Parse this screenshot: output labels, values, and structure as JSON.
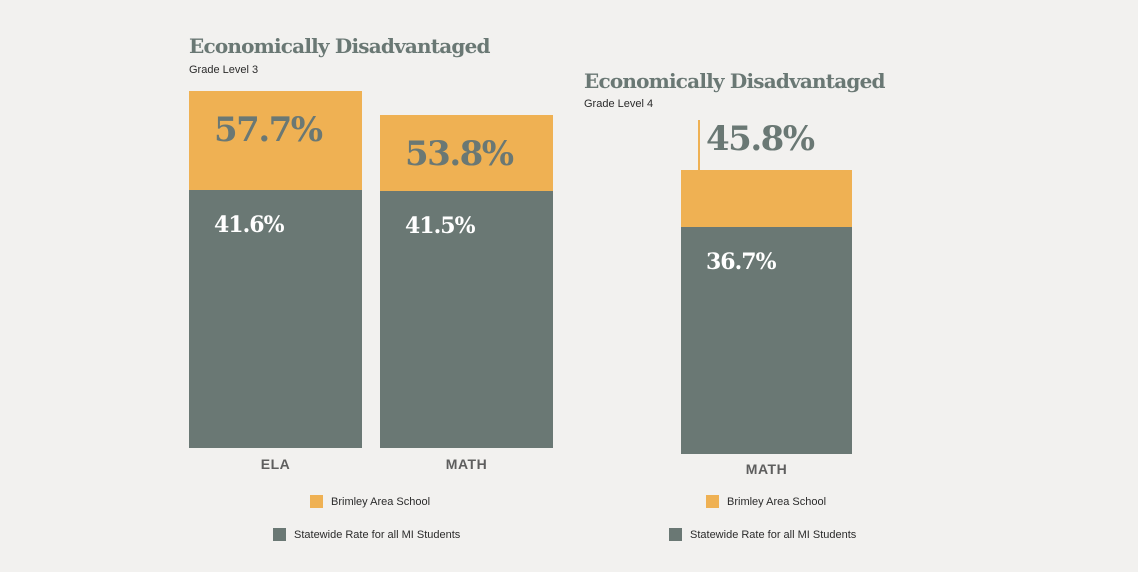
{
  "colors": {
    "school": "#efb153",
    "statewide": "#6a7874",
    "title": "#6a7874",
    "value_on_school": "#6a7874",
    "value_on_state": "#ffffff"
  },
  "chart_data": [
    {
      "type": "bar",
      "title": "Economically Disadvantaged",
      "subtitle": "Grade Level 3",
      "categories": [
        "ELA",
        "MATH"
      ],
      "series": [
        {
          "name": "Brimley Area School",
          "values": [
            57.7,
            53.8
          ],
          "labels": [
            "57.7%",
            "53.8%"
          ]
        },
        {
          "name": "Statewide Rate for all MI Students",
          "values": [
            41.6,
            41.5
          ],
          "labels": [
            "41.6%",
            "41.5%"
          ]
        }
      ],
      "ylim": [
        0,
        60
      ],
      "legend": [
        "Brimley Area School",
        "Statewide Rate for all MI Students"
      ]
    },
    {
      "type": "bar",
      "title": "Economically Disadvantaged",
      "subtitle": "Grade Level 4",
      "categories": [
        "MATH"
      ],
      "series": [
        {
          "name": "Brimley Area School",
          "values": [
            45.8
          ],
          "labels": [
            "45.8%"
          ]
        },
        {
          "name": "Statewide Rate for all MI Students",
          "values": [
            36.7
          ],
          "labels": [
            "36.7%"
          ]
        }
      ],
      "ylim": [
        0,
        60
      ],
      "legend": [
        "Brimley Area School",
        "Statewide Rate for all MI Students"
      ]
    }
  ]
}
